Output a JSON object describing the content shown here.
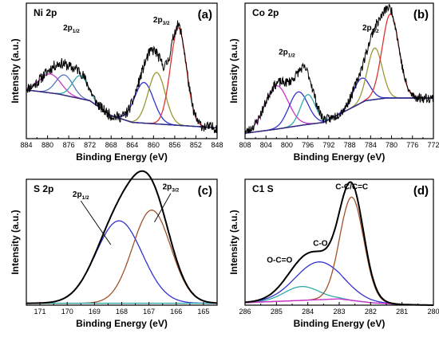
{
  "chart_data": [
    {
      "type": "line",
      "panel": "(a)",
      "title": "Ni 2p",
      "xlabel": "Binding Energy (eV)",
      "ylabel": "Intensity (a.u.)",
      "xlim": [
        884,
        848
      ],
      "xticks": [
        884,
        880,
        876,
        872,
        868,
        864,
        860,
        856,
        852,
        848
      ],
      "annotations": [
        {
          "main": "2p",
          "sub": "1/2",
          "x": 875.5,
          "y": 0.8
        },
        {
          "main": "2p",
          "sub": "3/2",
          "x": 858.5,
          "y": 0.86
        }
      ],
      "baseline": {
        "name": "background",
        "color": "#2b2b8c",
        "points": [
          [
            884,
            0.36
          ],
          [
            878,
            0.33
          ],
          [
            872,
            0.28
          ],
          [
            868,
            0.17
          ],
          [
            864,
            0.12
          ],
          [
            860,
            0.11
          ],
          [
            856,
            0.1
          ],
          [
            852,
            0.09
          ],
          [
            848,
            0.08
          ]
        ]
      },
      "raw": {
        "color": "#000000",
        "noise": 0.04,
        "seed": 11
      },
      "peaks": [
        {
          "center": 879.5,
          "height": 0.14,
          "width": 2.0,
          "color": "#cc33cc"
        },
        {
          "center": 876.8,
          "height": 0.15,
          "width": 1.6,
          "color": "#5577bb"
        },
        {
          "center": 873.8,
          "height": 0.17,
          "width": 1.5,
          "color": "#33aaaa"
        },
        {
          "center": 861.8,
          "height": 0.3,
          "width": 1.8,
          "color": "#3333cc"
        },
        {
          "center": 859.4,
          "height": 0.38,
          "width": 1.6,
          "color": "#999933"
        },
        {
          "center": 855.3,
          "height": 0.72,
          "width": 1.5,
          "color": "#dd3333"
        }
      ]
    },
    {
      "type": "line",
      "panel": "(b)",
      "title": "Co 2p",
      "xlabel": "Binding Energy (eV)",
      "ylabel": "Intensity (a.u.)",
      "xlim": [
        808,
        772
      ],
      "xticks": [
        808,
        804,
        800,
        796,
        792,
        788,
        784,
        780,
        776,
        772
      ],
      "annotations": [
        {
          "main": "2p",
          "sub": "1/2",
          "x": 800.0,
          "y": 0.62
        },
        {
          "main": "2p",
          "sub": "3/2",
          "x": 784.0,
          "y": 0.8
        }
      ],
      "baseline": {
        "name": "background",
        "color": "#2b2b8c",
        "points": [
          [
            808,
            0.04
          ],
          [
            802,
            0.07
          ],
          [
            797,
            0.1
          ],
          [
            793,
            0.12
          ],
          [
            789,
            0.2
          ],
          [
            785,
            0.28
          ],
          [
            781,
            0.3
          ],
          [
            776,
            0.3
          ],
          [
            772,
            0.3
          ]
        ]
      },
      "raw": {
        "color": "#000000",
        "noise": 0.035,
        "seed": 23
      },
      "peaks": [
        {
          "center": 802.0,
          "height": 0.32,
          "width": 2.2,
          "color": "#cc33cc"
        },
        {
          "center": 797.8,
          "height": 0.25,
          "width": 1.8,
          "color": "#3333cc"
        },
        {
          "center": 796.0,
          "height": 0.22,
          "width": 1.4,
          "color": "#33aaaa"
        },
        {
          "center": 785.8,
          "height": 0.18,
          "width": 1.6,
          "color": "#3333cc"
        },
        {
          "center": 783.2,
          "height": 0.38,
          "width": 1.4,
          "color": "#999933"
        },
        {
          "center": 780.2,
          "height": 0.62,
          "width": 1.6,
          "color": "#dd3333"
        }
      ]
    },
    {
      "type": "line",
      "panel": "(c)",
      "title": "S 2p",
      "xlabel": "Binding Energy (eV)",
      "ylabel": "Intensity (a.u.)",
      "xlim": [
        171.5,
        164.5
      ],
      "xticks": [
        171,
        170,
        169,
        168,
        167,
        166,
        165
      ],
      "annotations": [
        {
          "main": "2p",
          "sub": "1/2",
          "x": 169.5,
          "y": 0.86,
          "arrow_to": [
            168.4,
            0.48
          ]
        },
        {
          "main": "2p",
          "sub": "3/2",
          "x": 166.2,
          "y": 0.92,
          "arrow_to": [
            166.8,
            0.66
          ]
        }
      ],
      "baseline": {
        "name": "background",
        "color": "#33aaaa",
        "points": [
          [
            171.5,
            0.015
          ],
          [
            168,
            0.015
          ],
          [
            164.5,
            0.015
          ]
        ]
      },
      "envelope": {
        "color": "#000000"
      },
      "peaks": [
        {
          "center": 168.1,
          "height": 0.655,
          "width": 0.85,
          "color": "#3333cc"
        },
        {
          "center": 166.9,
          "height": 0.74,
          "width": 0.7,
          "color": "#a0522d"
        }
      ]
    },
    {
      "type": "line",
      "panel": "(d)",
      "title": "C1 S",
      "xlabel": "Binding Energy (eV)",
      "ylabel": "Intensity (a.u.)",
      "xlim": [
        286,
        280
      ],
      "xticks": [
        286,
        285,
        284,
        283,
        282,
        281,
        280
      ],
      "annotations": [
        {
          "main": "C-C/C=C",
          "sub": "",
          "x": 282.6,
          "y": 0.92
        },
        {
          "main": "C-O",
          "sub": "",
          "x": 283.6,
          "y": 0.47
        },
        {
          "main": "O-C=O",
          "sub": "",
          "x": 284.9,
          "y": 0.34
        }
      ],
      "baseline": {
        "name": "background",
        "color": "#cc33cc",
        "points": [
          [
            286,
            0.02
          ],
          [
            284.5,
            0.035
          ],
          [
            283,
            0.05
          ],
          [
            282,
            0.02
          ],
          [
            281,
            0.005
          ],
          [
            280,
            0.0
          ]
        ]
      },
      "envelope": {
        "color": "#000000"
      },
      "peaks": [
        {
          "center": 284.2,
          "height": 0.11,
          "width": 0.55,
          "color": "#33aaaa"
        },
        {
          "center": 283.65,
          "height": 0.3,
          "width": 0.75,
          "color": "#3333cc"
        },
        {
          "center": 282.6,
          "height": 0.82,
          "width": 0.38,
          "color": "#a0522d"
        }
      ]
    }
  ]
}
